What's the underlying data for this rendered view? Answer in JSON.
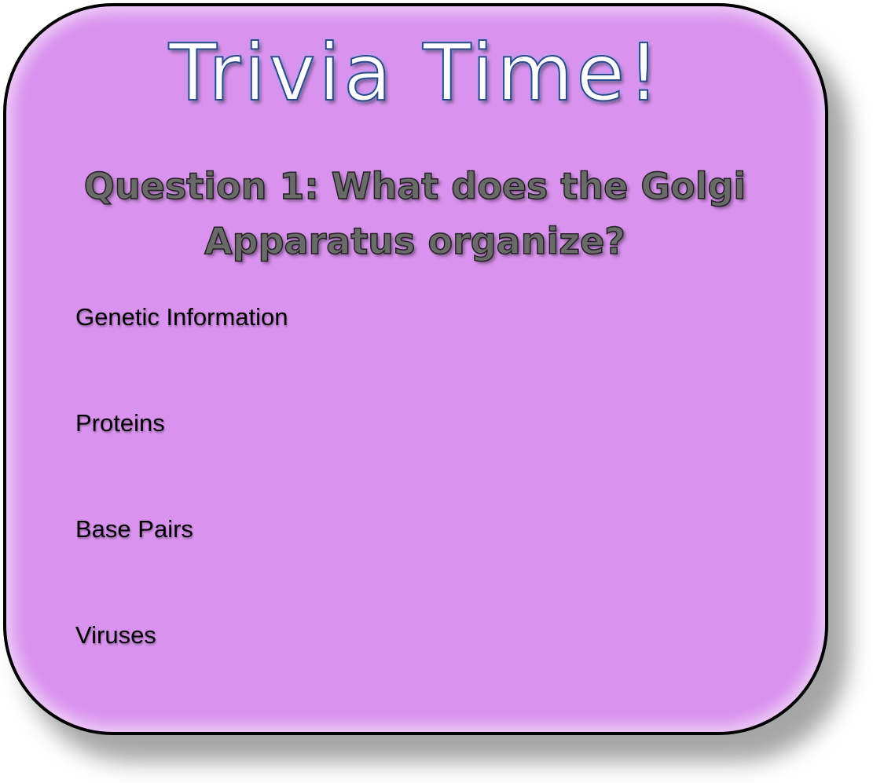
{
  "slide": {
    "title": "Trivia Time!",
    "question": "Question 1: What does the Golgi Apparatus organize?",
    "answers": [
      "Genetic Information",
      "Proteins",
      "Base Pairs",
      "Viruses"
    ]
  },
  "colors": {
    "card_fill": "#d993ee",
    "card_border": "#000000",
    "title_fill": "#ffffff",
    "title_outline": "#2d4a8a",
    "question_fill": "#6a6a6a"
  }
}
